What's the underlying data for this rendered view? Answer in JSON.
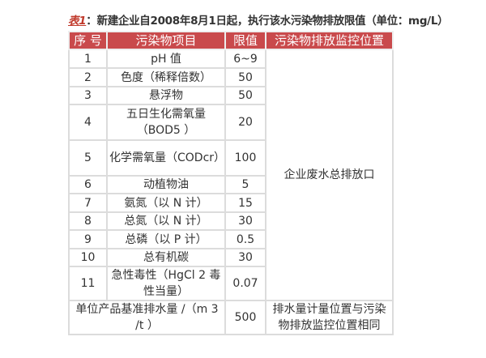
{
  "title": {
    "label": "表1",
    "text": "：新建企业自2008年8月1日起，执行该水污染物排放限值（单位：mg/L）"
  },
  "headers": [
    "序 号",
    "污染物项目",
    "限值",
    "污染物排放监控位置"
  ],
  "rows": [
    {
      "no": "1",
      "item": "pH 值",
      "limit": "6~9"
    },
    {
      "no": "2",
      "item": "色度（稀释倍数）",
      "limit": "50"
    },
    {
      "no": "3",
      "item": "悬浮物",
      "limit": "50"
    },
    {
      "no": "4",
      "item": "五日生化需氧量（BOD5 ）",
      "limit": "20"
    },
    {
      "no": "5",
      "item": "化学需氧量（CODcr）",
      "limit": "100"
    },
    {
      "no": "6",
      "item": "动植物油",
      "limit": "5"
    },
    {
      "no": "7",
      "item": "氨氮（以 N 计）",
      "limit": "15"
    },
    {
      "no": "8",
      "item": "总氮（以 N 计）",
      "limit": "30"
    },
    {
      "no": "9",
      "item": "总磷（以 P 计）",
      "limit": "0.5"
    },
    {
      "no": "10",
      "item": "总有机碳",
      "limit": "30"
    },
    {
      "no": "11",
      "item": "急性毒性（HgCl 2 毒性当量）",
      "limit": "0.07"
    }
  ],
  "location": "企业废水总排放口",
  "last_row": {
    "item": "单位产品基准排水量 /（m 3 /t ）",
    "limit": "500",
    "location": "排水量计量位置与污染物排放监控位置相同"
  },
  "colors": {
    "header_bg": "#c94a4c",
    "title_label": "#c0392b"
  }
}
